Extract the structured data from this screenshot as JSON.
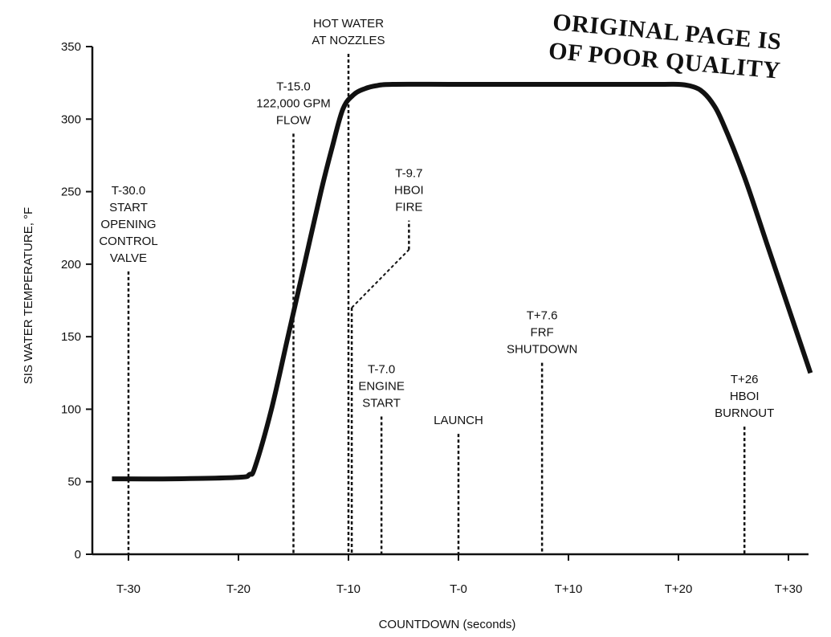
{
  "chart_data": {
    "type": "line",
    "xlabel": "COUNTDOWN (seconds)",
    "ylabel": "SIS WATER TEMPERATURE, °F",
    "xlim": [
      -33,
      32
    ],
    "ylim": [
      0,
      350
    ],
    "grid": false,
    "x_ticks": [
      {
        "value": -30,
        "label": "T-30"
      },
      {
        "value": -20,
        "label": "T-20"
      },
      {
        "value": -10,
        "label": "T-10"
      },
      {
        "value": 0,
        "label": "T-0"
      },
      {
        "value": 10,
        "label": "T+10"
      },
      {
        "value": 20,
        "label": "T+20"
      },
      {
        "value": 30,
        "label": "T+30"
      }
    ],
    "y_ticks": [
      0,
      50,
      100,
      150,
      200,
      250,
      300,
      350
    ],
    "series": [
      {
        "name": "",
        "x": [
          -31.5,
          -26,
          -20,
          -19,
          -18.5,
          -17,
          -15.5,
          -14,
          -12.5,
          -11.5,
          -10.5,
          -9.5,
          -8.5,
          -7.5,
          -6,
          0,
          10,
          18,
          20,
          21,
          22,
          23,
          24,
          26,
          28,
          30,
          32
        ],
        "y": [
          52,
          52,
          53,
          55,
          60,
          100,
          150,
          200,
          250,
          280,
          307,
          317,
          321,
          323,
          324,
          324,
          324,
          324,
          324,
          323,
          320,
          312,
          298,
          260,
          215,
          170,
          125
        ]
      }
    ],
    "annotations": [
      {
        "lines": [
          "T-30.0",
          "START",
          "OPENING",
          "CONTROL",
          "VALVE"
        ],
        "x": -30,
        "line_top": 195,
        "line_bottom": 0
      },
      {
        "lines": [
          "T-15.0",
          "122,000 GPM",
          "FLOW"
        ],
        "x": -15,
        "line_top": 290,
        "line_bottom": 0
      },
      {
        "lines": [
          "HOT WATER",
          "AT NOZZLES"
        ],
        "x": -10,
        "line_top": 345,
        "line_bottom": 0
      },
      {
        "lines": [
          "T-9.7",
          "HBOI",
          "FIRE"
        ],
        "x": -9.7,
        "line_top": 170,
        "line_bottom": 0,
        "leader_to": {
          "x": -4.5,
          "y": 210,
          "top": 230
        }
      },
      {
        "lines": [
          "T-7.0",
          "ENGINE",
          "START"
        ],
        "x": -7.0,
        "line_top": 95,
        "line_bottom": 0
      },
      {
        "lines": [
          "LAUNCH"
        ],
        "x": 0,
        "line_top": 83,
        "line_bottom": 0
      },
      {
        "lines": [
          "T+7.6",
          "FRF",
          "SHUTDOWN"
        ],
        "x": 7.6,
        "line_top": 132,
        "line_bottom": 0
      },
      {
        "lines": [
          "T+26",
          "HBOI",
          "BURNOUT"
        ],
        "x": 26,
        "line_top": 88,
        "line_bottom": 0
      }
    ]
  },
  "stamp": {
    "line1": "ORIGINAL PAGE IS",
    "line2": "OF POOR QUALITY"
  }
}
